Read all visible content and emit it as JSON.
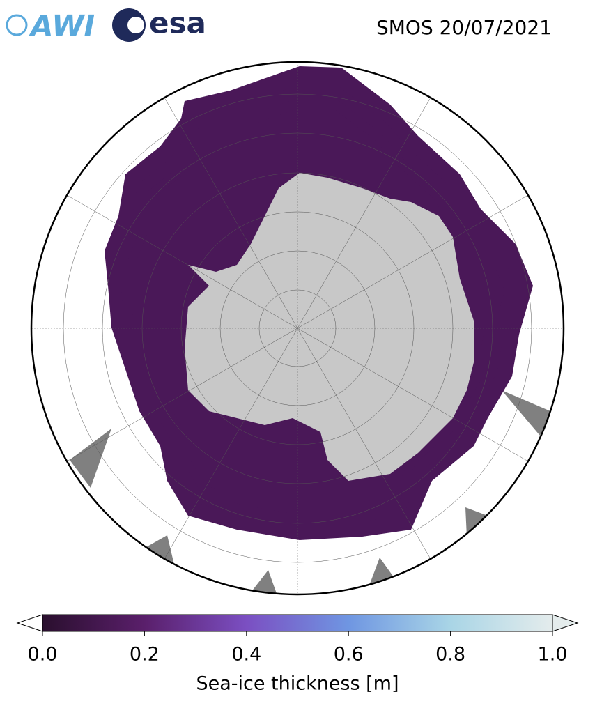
{
  "header": {
    "logos": [
      "AWI",
      "esa"
    ],
    "title": "SMOS 20/07/2021"
  },
  "colorbar": {
    "label": "Sea-ice thickness [m]",
    "lim": [
      0,
      1
    ],
    "ticks": [
      {
        "value": 0,
        "label": "0.0"
      },
      {
        "value": 0.2,
        "label": "0.2"
      },
      {
        "value": 0.4,
        "label": "0.4"
      },
      {
        "value": 0.6,
        "label": "0.6"
      },
      {
        "value": 0.8,
        "label": "0.8"
      },
      {
        "value": 1,
        "label": "1.0"
      }
    ],
    "colors": [
      "#2a0f2e",
      "#5a1f6b",
      "#7b4fc2",
      "#6f96e2",
      "#a9d5e6",
      "#e4ecec"
    ]
  }
}
